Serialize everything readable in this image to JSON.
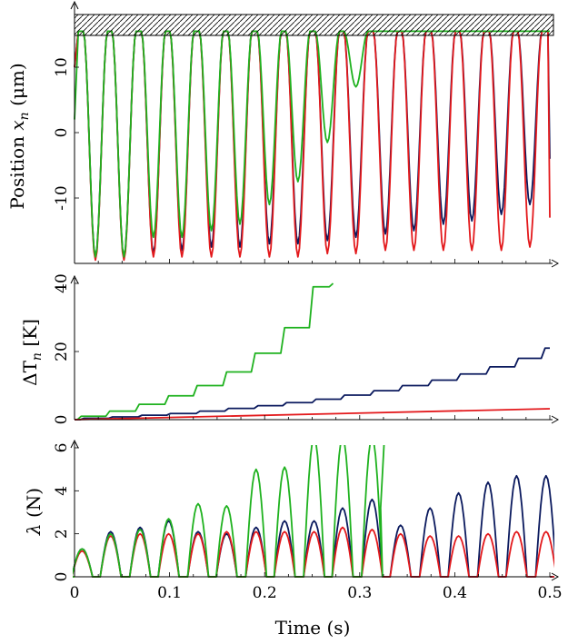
{
  "colors": {
    "dark_blue": "#0b1a5e",
    "red": "#e3191c",
    "green": "#1fb21f"
  },
  "chart_data": [
    {
      "type": "line",
      "ylabel_main": "Position ",
      "ylabel_var": "x",
      "ylabel_sub": "n",
      "ylabel_unit": " (μm)",
      "ylim": [
        -20.5,
        19
      ],
      "yticks": [
        10,
        0,
        -10
      ],
      "ytick_labels": [
        "10",
        "0",
        "-10"
      ],
      "wall_y": 15.5,
      "wall_pattern": "hatched",
      "oscillation_period_s": 0.0305,
      "series": [
        {
          "color_key": "dark_blue",
          "trough_times": [
            0.022,
            0.052,
            0.083,
            0.113,
            0.144,
            0.174,
            0.205,
            0.235,
            0.266,
            0.296,
            0.327,
            0.357,
            0.388,
            0.418,
            0.449,
            0.479
          ],
          "trough_values": [
            -19,
            -19,
            -18.5,
            -18,
            -17.5,
            -17.5,
            -17,
            -17,
            -16.5,
            -16,
            -15.5,
            -15,
            -14,
            -13.5,
            -12.5,
            -11
          ]
        },
        {
          "color_key": "red",
          "trough_times": [
            0.022,
            0.052,
            0.083,
            0.113,
            0.144,
            0.174,
            0.205,
            0.235,
            0.266,
            0.296,
            0.327,
            0.357,
            0.388,
            0.418,
            0.449,
            0.479
          ],
          "trough_values": [
            -19.5,
            -19.5,
            -19,
            -19,
            -19,
            -19,
            -19,
            -19,
            -18.5,
            -18.5,
            -18,
            -18,
            -18,
            -18,
            -18,
            -17.5
          ]
        },
        {
          "color_key": "green",
          "trough_times": [
            0.022,
            0.052,
            0.083,
            0.113,
            0.144,
            0.174,
            0.205,
            0.235,
            0.266,
            0.296
          ],
          "trough_values": [
            -19,
            -19,
            -16,
            -16,
            -15,
            -14,
            -11,
            -7.5,
            -1.5,
            7
          ]
        }
      ]
    },
    {
      "type": "line",
      "ylabel_main": "ΔT",
      "ylabel_sub": "n",
      "ylabel_unit": " [K]",
      "ylim": [
        0,
        40
      ],
      "yticks": [
        0,
        20,
        40
      ],
      "ytick_labels": [
        "0",
        "20",
        "40"
      ],
      "series": [
        {
          "color_key": "green",
          "x": [
            0,
            0.007,
            0.037,
            0.068,
            0.099,
            0.129,
            0.16,
            0.19,
            0.221,
            0.251,
            0.272
          ],
          "y": [
            0,
            1,
            2.5,
            4.5,
            7,
            10,
            14,
            19.5,
            27,
            39,
            40
          ]
        },
        {
          "color_key": "dark_blue",
          "x": [
            0,
            0.01,
            0.04,
            0.071,
            0.101,
            0.132,
            0.162,
            0.193,
            0.223,
            0.254,
            0.284,
            0.315,
            0.345,
            0.376,
            0.406,
            0.437,
            0.467,
            0.495
          ],
          "y": [
            0,
            0.4,
            0.8,
            1.3,
            1.8,
            2.5,
            3.3,
            4.1,
            5.0,
            6.0,
            7.2,
            8.5,
            10,
            11.6,
            13.4,
            15.5,
            18,
            21
          ]
        },
        {
          "color_key": "red",
          "x": [
            0,
            0.5
          ],
          "y": [
            0,
            3.2
          ]
        }
      ]
    },
    {
      "type": "line",
      "ylabel_main": "λ",
      "ylabel_unit": " (N)",
      "ylim": [
        0,
        6
      ],
      "yticks": [
        0,
        2,
        4,
        6
      ],
      "ytick_labels": [
        "0",
        "2",
        "4",
        "6"
      ],
      "series": [
        {
          "color_key": "dark_blue",
          "peak_times": [
            0.008,
            0.038,
            0.069,
            0.099,
            0.13,
            0.16,
            0.191,
            0.221,
            0.252,
            0.282,
            0.313,
            0.343,
            0.374,
            0.404,
            0.435,
            0.465,
            0.496
          ],
          "peak_values": [
            1.3,
            2.1,
            2.3,
            2.6,
            2.1,
            2.0,
            2.3,
            2.6,
            2.6,
            3.2,
            3.6,
            2.4,
            3.2,
            3.9,
            4.4,
            4.7,
            4.7
          ]
        },
        {
          "color_key": "red",
          "peak_times": [
            0.008,
            0.038,
            0.069,
            0.099,
            0.13,
            0.16,
            0.191,
            0.221,
            0.252,
            0.282,
            0.313,
            0.343,
            0.374,
            0.404,
            0.435,
            0.465,
            0.496
          ],
          "peak_values": [
            1.2,
            1.9,
            2.0,
            2.0,
            2.0,
            2.1,
            2.1,
            2.1,
            2.1,
            2.3,
            2.2,
            2.0,
            1.9,
            1.9,
            2.0,
            2.1,
            2.1
          ]
        },
        {
          "color_key": "green",
          "peak_times": [
            0.008,
            0.038,
            0.069,
            0.099,
            0.13,
            0.16,
            0.191,
            0.221,
            0.252,
            0.282,
            0.313
          ],
          "peak_values": [
            1.3,
            2.0,
            2.2,
            2.7,
            3.4,
            3.3,
            5.0,
            5.1,
            6.5,
            6.5,
            6.5
          ]
        }
      ],
      "xlabel": "Time (s)",
      "xlim": [
        0,
        0.5
      ],
      "xticks": [
        0,
        0.1,
        0.2,
        0.3,
        0.4,
        0.5
      ],
      "xtick_labels": [
        "0",
        "0.1",
        "0.2",
        "0.3",
        "0.4",
        "0.5"
      ]
    }
  ]
}
